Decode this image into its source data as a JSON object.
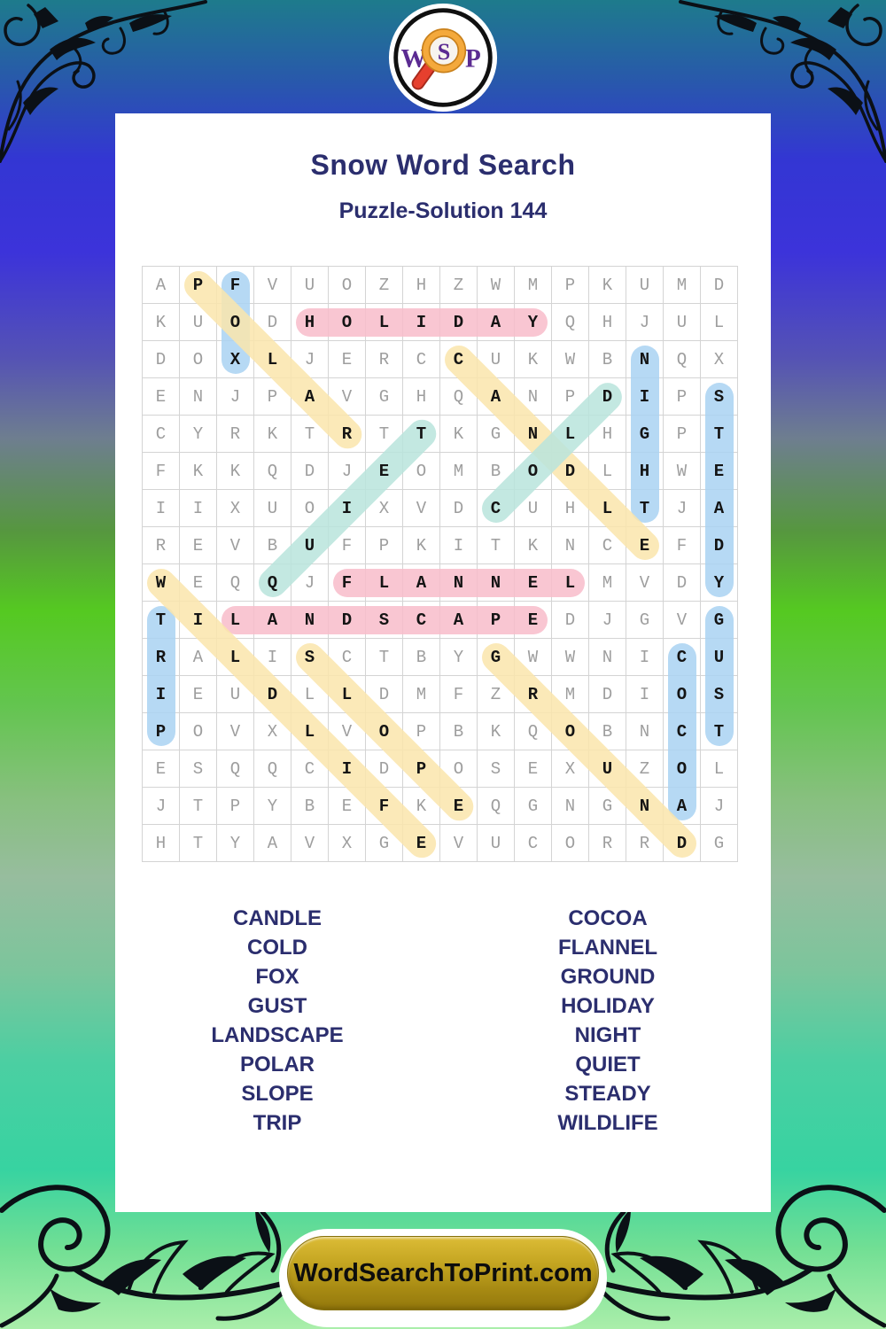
{
  "logo": {
    "w": "W",
    "s": "S",
    "p": "P"
  },
  "header": {
    "title": "Snow Word Search",
    "subtitle": "Puzzle-Solution 144"
  },
  "grid": {
    "size": 16,
    "rows": [
      "APFVUOZHZWMPKUMD",
      "KUODHOLIDAYQHJUL",
      "DOXLJERCCUKWBNQX",
      "ENJPAVGHQANPDIPS",
      "CYRKTRTTKGNLHGPT",
      "FKKQDJEOMBODLHWE",
      "IIXUOIXVDCUHLTJA",
      "REVBUFPKITKNCEFD",
      "WEQQJFLANNELMVDY",
      "TILANDSCAPEDJGVG",
      "RALISCTBYGWWNICU",
      "IEUDLLDMFZRMDIOS",
      "POVXLVOPBKQOBNCT",
      "ESQQCIDPOSEXUZOL",
      "JTPYBEFKEQGNGNAJ",
      "HTYAVXGEVUCORRDG"
    ]
  },
  "highlight_colors": {
    "pink": "#f8bcca",
    "yellow": "#fae5ab",
    "blue": "#a9d2f2",
    "teal": "#b9e4dc"
  },
  "solutions": [
    {
      "word": "HOLIDAY",
      "row": 2,
      "col": 5,
      "dir": "h",
      "color": "pink"
    },
    {
      "word": "FLANNEL",
      "row": 9,
      "col": 6,
      "dir": "h",
      "color": "pink"
    },
    {
      "word": "LANDSCAPE",
      "row": 10,
      "col": 3,
      "dir": "h",
      "color": "pink"
    },
    {
      "word": "FOX",
      "row": 1,
      "col": 3,
      "dir": "v",
      "color": "blue"
    },
    {
      "word": "NIGHT",
      "row": 3,
      "col": 14,
      "dir": "v",
      "color": "blue"
    },
    {
      "word": "STEADY",
      "row": 4,
      "col": 16,
      "dir": "v",
      "color": "blue"
    },
    {
      "word": "TRIP",
      "row": 10,
      "col": 1,
      "dir": "v",
      "color": "blue"
    },
    {
      "word": "GUST",
      "row": 10,
      "col": 16,
      "dir": "v",
      "color": "blue"
    },
    {
      "word": "COCOA",
      "row": 11,
      "col": 15,
      "dir": "v",
      "color": "blue"
    },
    {
      "word": "POLAR",
      "row": 1,
      "col": 2,
      "dir": "dr",
      "color": "yellow"
    },
    {
      "word": "CANDLE",
      "row": 3,
      "col": 9,
      "dir": "dr",
      "color": "yellow"
    },
    {
      "word": "WILDLIFE",
      "row": 9,
      "col": 1,
      "dir": "dr",
      "color": "yellow"
    },
    {
      "word": "SLOPE",
      "row": 11,
      "col": 5,
      "dir": "dr",
      "color": "yellow"
    },
    {
      "word": "GROUND",
      "row": 11,
      "col": 10,
      "dir": "dr",
      "color": "yellow"
    },
    {
      "word": "QUIET",
      "row": 9,
      "col": 4,
      "dir": "ur",
      "color": "teal"
    },
    {
      "word": "COLD",
      "row": 7,
      "col": 10,
      "dir": "ur",
      "color": "teal"
    }
  ],
  "word_list": {
    "left": [
      "CANDLE",
      "COLD",
      "FOX",
      "GUST",
      "LANDSCAPE",
      "POLAR",
      "SLOPE",
      "TRIP"
    ],
    "right": [
      "COCOA",
      "FLANNEL",
      "GROUND",
      "HOLIDAY",
      "NIGHT",
      "QUIET",
      "STEADY",
      "WILDLIFE"
    ]
  },
  "footer": {
    "site_label": "WordSearchToPrint.com"
  },
  "colors": {
    "title_navy": "#2b2e6e",
    "letter_gray": "#9e9e9e",
    "letter_black": "#141414",
    "grid_line": "#d4d4d4",
    "button_gold": "#b3961a",
    "logo_purple": "#5b2b92",
    "magnifier_orange": "#f4a93c",
    "handle_red": "#e6402e"
  }
}
